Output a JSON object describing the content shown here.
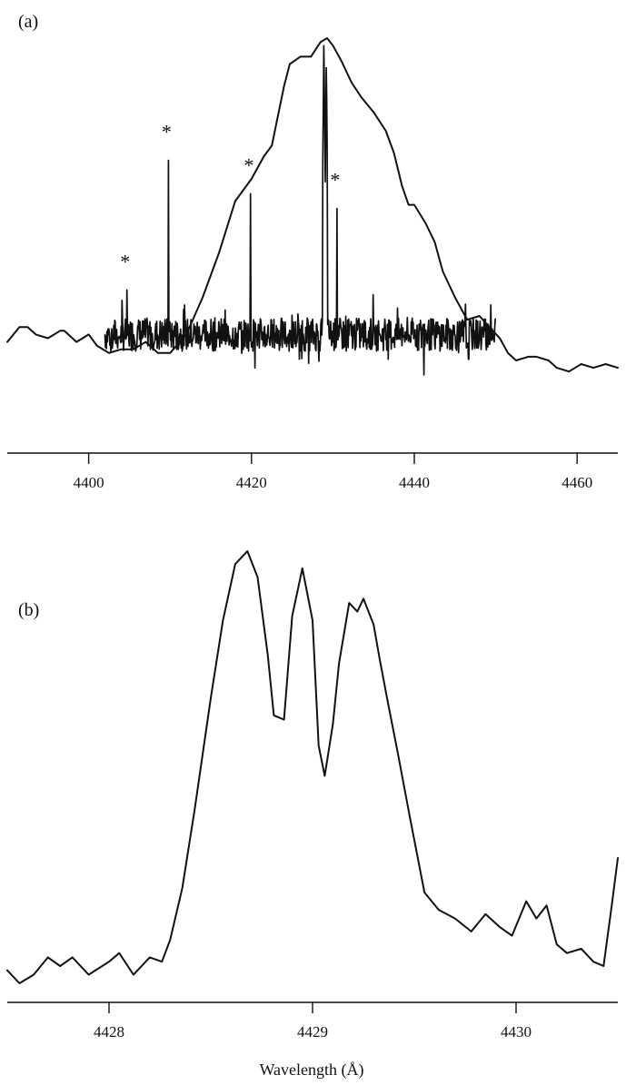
{
  "chart_data": [
    {
      "type": "line",
      "panel_label": "(a)",
      "xlabel": "",
      "ylabel": "",
      "xlim": [
        4390,
        4465
      ],
      "ylim": [
        0,
        1
      ],
      "x_ticks": [
        "4400",
        "4420",
        "4440",
        "4460"
      ],
      "x_tick_values": [
        4400,
        4420,
        4440,
        4460
      ],
      "grid": false,
      "series": [
        {
          "style": "smooth",
          "x": [
            4390,
            4391.5,
            4392.5,
            4393.5,
            4395,
            4396.5,
            4397,
            4398.5,
            4400,
            4401,
            4402.5,
            4404,
            4405.5,
            4407,
            4408.5,
            4410,
            4412,
            4414,
            4416,
            4418,
            4420,
            4421.5,
            4422.5,
            4424,
            4424.7,
            4426,
            4427.3,
            4428.5,
            4429.3,
            4430,
            4431,
            4432.3,
            4433.5,
            4435,
            4436.5,
            4437.5,
            4438.5,
            4439.3,
            4440,
            4441.4,
            4442.5,
            4443.5,
            4445,
            4446.5,
            4448,
            4449.2,
            4450.5,
            4451.5,
            4452.5,
            4454,
            4455,
            4456.5,
            4457.5,
            4459,
            4460.5,
            4462,
            4463.5,
            4465
          ],
          "y": [
            0.18,
            0.22,
            0.22,
            0.2,
            0.19,
            0.21,
            0.21,
            0.18,
            0.2,
            0.17,
            0.15,
            0.16,
            0.16,
            0.18,
            0.15,
            0.15,
            0.2,
            0.3,
            0.42,
            0.56,
            0.62,
            0.68,
            0.71,
            0.87,
            0.93,
            0.95,
            0.95,
            0.99,
            1.0,
            0.98,
            0.94,
            0.88,
            0.84,
            0.8,
            0.75,
            0.69,
            0.6,
            0.55,
            0.55,
            0.5,
            0.45,
            0.37,
            0.3,
            0.24,
            0.25,
            0.22,
            0.19,
            0.15,
            0.13,
            0.14,
            0.14,
            0.13,
            0.11,
            0.1,
            0.12,
            0.11,
            0.12,
            0.11
          ]
        },
        {
          "style": "noisy",
          "x_range": [
            4402,
            4450
          ],
          "baseline": 0.2,
          "emission_lines": [
            {
              "x": 4404.7,
              "y": 0.32,
              "asterisk": "*"
            },
            {
              "x": 4409.8,
              "y": 0.67,
              "asterisk": "*"
            },
            {
              "x": 4419.9,
              "y": 0.58,
              "asterisk": "*"
            },
            {
              "x": 4428.9,
              "y": 0.98,
              "asterisk": ""
            },
            {
              "x": 4429.2,
              "y": 0.92,
              "asterisk": ""
            },
            {
              "x": 4430.5,
              "y": 0.54,
              "asterisk": "*"
            },
            {
              "x": 4449.4,
              "y": 0.28,
              "asterisk": ""
            }
          ]
        }
      ]
    },
    {
      "type": "line",
      "panel_label": "(b)",
      "xlabel": "Wavelength (Å)",
      "ylabel": "",
      "xlim": [
        4427.5,
        4430.5
      ],
      "ylim": [
        0,
        1
      ],
      "x_ticks": [
        "4428",
        "4429",
        "4430"
      ],
      "x_tick_values": [
        4428,
        4429,
        4430
      ],
      "grid": false,
      "series": [
        {
          "x": [
            4427.5,
            4427.56,
            4427.63,
            4427.7,
            4427.76,
            4427.82,
            4427.9,
            4428.0,
            4428.05,
            4428.12,
            4428.2,
            4428.26,
            4428.3,
            4428.36,
            4428.42,
            4428.5,
            4428.56,
            4428.62,
            4428.68,
            4428.73,
            4428.78,
            4428.81,
            4428.86,
            4428.9,
            4428.95,
            4429.0,
            4429.03,
            4429.06,
            4429.1,
            4429.13,
            4429.18,
            4429.22,
            4429.25,
            4429.3,
            4429.33,
            4429.37,
            4429.42,
            4429.48,
            4429.55,
            4429.62,
            4429.7,
            4429.78,
            4429.85,
            4429.92,
            4429.98,
            4430.05,
            4430.1,
            4430.15,
            4430.2,
            4430.25,
            4430.32,
            4430.38,
            4430.43,
            4430.47,
            4430.5
          ],
          "y": [
            0.03,
            0.0,
            0.02,
            0.06,
            0.04,
            0.06,
            0.02,
            0.05,
            0.07,
            0.02,
            0.06,
            0.05,
            0.1,
            0.22,
            0.4,
            0.66,
            0.84,
            0.97,
            1.0,
            0.94,
            0.76,
            0.62,
            0.61,
            0.85,
            0.96,
            0.84,
            0.55,
            0.48,
            0.6,
            0.74,
            0.88,
            0.86,
            0.89,
            0.83,
            0.75,
            0.65,
            0.53,
            0.38,
            0.21,
            0.17,
            0.15,
            0.12,
            0.16,
            0.13,
            0.11,
            0.19,
            0.15,
            0.18,
            0.09,
            0.07,
            0.08,
            0.05,
            0.04,
            0.18,
            0.29
          ]
        }
      ]
    }
  ]
}
